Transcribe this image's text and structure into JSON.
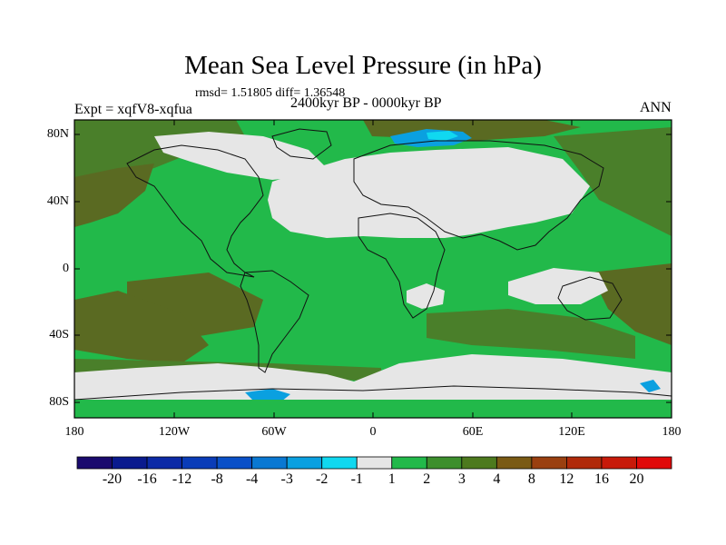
{
  "title": "Mean Sea Level Pressure (in hPa)",
  "stats": "rmsd= 1.51805 diff= 1.36548",
  "experiment": "Expt = xqfV8-xqfua",
  "period": "2400kyr BP - 0000kyr BP",
  "season": "ANN",
  "lat_labels": [
    "80N",
    "40N",
    "0",
    "40S",
    "80S"
  ],
  "lon_labels": [
    "180",
    "120W",
    "60W",
    "0",
    "60E",
    "120E",
    "180"
  ],
  "colorbar": {
    "labels": [
      "-20",
      "-16",
      "-12",
      "-8",
      "-4",
      "-3",
      "-2",
      "-1",
      "1",
      "2",
      "3",
      "4",
      "8",
      "12",
      "16",
      "20"
    ],
    "colors": [
      "#1a0a6e",
      "#0a1a8e",
      "#0c2aa6",
      "#0a3cb8",
      "#0a50c8",
      "#0a78d2",
      "#0aa0e0",
      "#10d8f0",
      "#e6e6e6",
      "#22b94a",
      "#3d8f2d",
      "#4d7a1e",
      "#7a5a14",
      "#9a4010",
      "#b02a0a",
      "#c81a0a",
      "#e00a0a"
    ]
  },
  "map_colors": {
    "land_green": "#22b94a",
    "ocean_green": "#22b94a",
    "dark_green": "#4a7f2a",
    "olive": "#5a6a22",
    "light_grey": "#e6e6e6",
    "blue": "#0aa0e0",
    "cyan": "#10d8f0"
  }
}
